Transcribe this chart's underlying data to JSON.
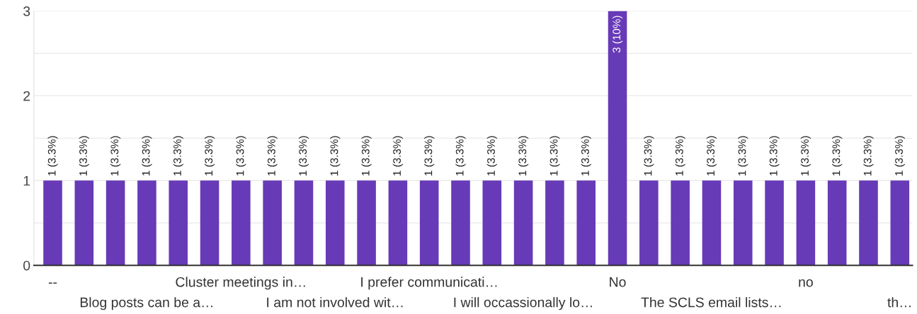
{
  "chart_data": {
    "type": "bar",
    "categories": [
      "--",
      null,
      null,
      "Blog posts can be a…",
      null,
      null,
      "Cluster meetings in…",
      null,
      null,
      "I am not involved wit…",
      null,
      null,
      "I prefer communicati…",
      null,
      null,
      "I will occassionally lo…",
      null,
      null,
      "No",
      null,
      null,
      "The SCLS email lists…",
      null,
      null,
      "no",
      null,
      null,
      "th…"
    ],
    "values": [
      1,
      1,
      1,
      1,
      1,
      1,
      1,
      1,
      1,
      1,
      1,
      1,
      1,
      1,
      1,
      1,
      1,
      1,
      3,
      1,
      1,
      1,
      1,
      1,
      1,
      1,
      1,
      1
    ],
    "value_labels": [
      "1 (3.3%)",
      "1 (3.3%)",
      "1 (3.3%)",
      "1 (3.3%)",
      "1 (3.3%)",
      "1 (3.3%)",
      "1 (3.3%)",
      "1 (3.3%)",
      "1 (3.3%)",
      "1 (3.3%)",
      "1 (3.3%)",
      "1 (3.3%)",
      "1 (3.3%)",
      "1 (3.3%)",
      "1 (3.3%)",
      "1 (3.3%)",
      "1 (3.3%)",
      "1 (3.3%)",
      "3 (10%)",
      "1 (3.3%)",
      "1 (3.3%)",
      "1 (3.3%)",
      "1 (3.3%)",
      "1 (3.3%)",
      "1 (3.3%)",
      "1 (3.3%)",
      "1 (3.3%)",
      "1 (3.3%)"
    ],
    "color": "#673ab7",
    "ylim": [
      0,
      3
    ],
    "yticks": [
      0,
      {
        "value": 0.5,
        "label": null
      },
      1,
      {
        "value": 1.5,
        "label": null
      },
      2,
      {
        "value": 2.5,
        "label": null
      },
      3
    ],
    "grid": "y",
    "legend": false
  }
}
